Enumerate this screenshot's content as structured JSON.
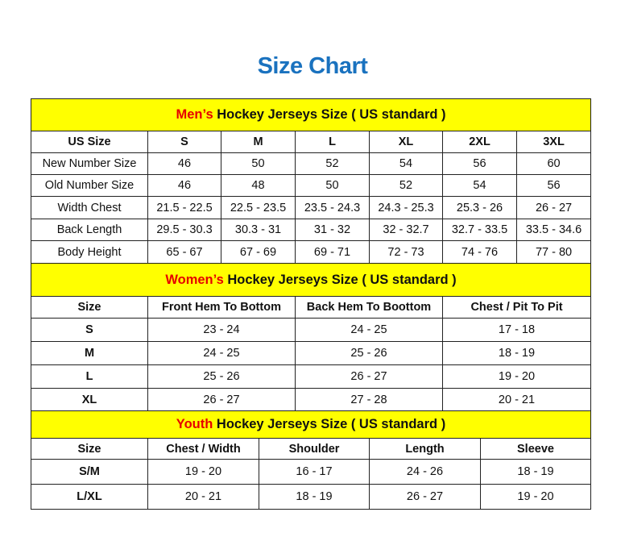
{
  "title": "Size Chart",
  "colors": {
    "title": "#1a72bf",
    "header_bg": "#ffff00",
    "accent": "#e60000"
  },
  "men": {
    "header_accent": "Men’s",
    "header_rest": " Hockey Jerseys Size ( US standard )",
    "columns": [
      "US Size",
      "S",
      "M",
      "L",
      "XL",
      "2XL",
      "3XL"
    ],
    "rows": [
      [
        "New Number Size",
        "46",
        "50",
        "52",
        "54",
        "56",
        "60"
      ],
      [
        "Old Number Size",
        "46",
        "48",
        "50",
        "52",
        "54",
        "56"
      ],
      [
        "Width Chest",
        "21.5 - 22.5",
        "22.5 - 23.5",
        "23.5 - 24.3",
        "24.3 - 25.3",
        "25.3 - 26",
        "26 - 27"
      ],
      [
        "Back Length",
        "29.5 - 30.3",
        "30.3 - 31",
        "31 - 32",
        "32 - 32.7",
        "32.7 - 33.5",
        "33.5 - 34.6"
      ],
      [
        "Body Height",
        "65 - 67",
        "67 - 69",
        "69 - 71",
        "72 - 73",
        "74 - 76",
        "77 - 80"
      ]
    ]
  },
  "women": {
    "header_accent": "Women’s",
    "header_rest": " Hockey Jerseys Size ( US standard )",
    "columns": [
      "Size",
      "Front Hem To Bottom",
      "Back Hem To Boottom",
      "Chest / Pit To Pit"
    ],
    "rows": [
      [
        "S",
        "23 - 24",
        "24 - 25",
        "17 - 18"
      ],
      [
        "M",
        "24 - 25",
        "25 - 26",
        "18 - 19"
      ],
      [
        "L",
        "25 - 26",
        "26 - 27",
        "19 - 20"
      ],
      [
        "XL",
        "26 - 27",
        "27 - 28",
        "20 - 21"
      ]
    ]
  },
  "youth": {
    "header_accent": "Youth",
    "header_rest": " Hockey Jerseys Size ( US standard )",
    "columns": [
      "Size",
      "Chest / Width",
      "Shoulder",
      "Length",
      "Sleeve"
    ],
    "rows": [
      [
        "S/M",
        "19 - 20",
        "16 - 17",
        "24 - 26",
        "18 - 19"
      ],
      [
        "L/XL",
        "20 - 21",
        "18 - 19",
        "26 - 27",
        "19 - 20"
      ]
    ]
  }
}
